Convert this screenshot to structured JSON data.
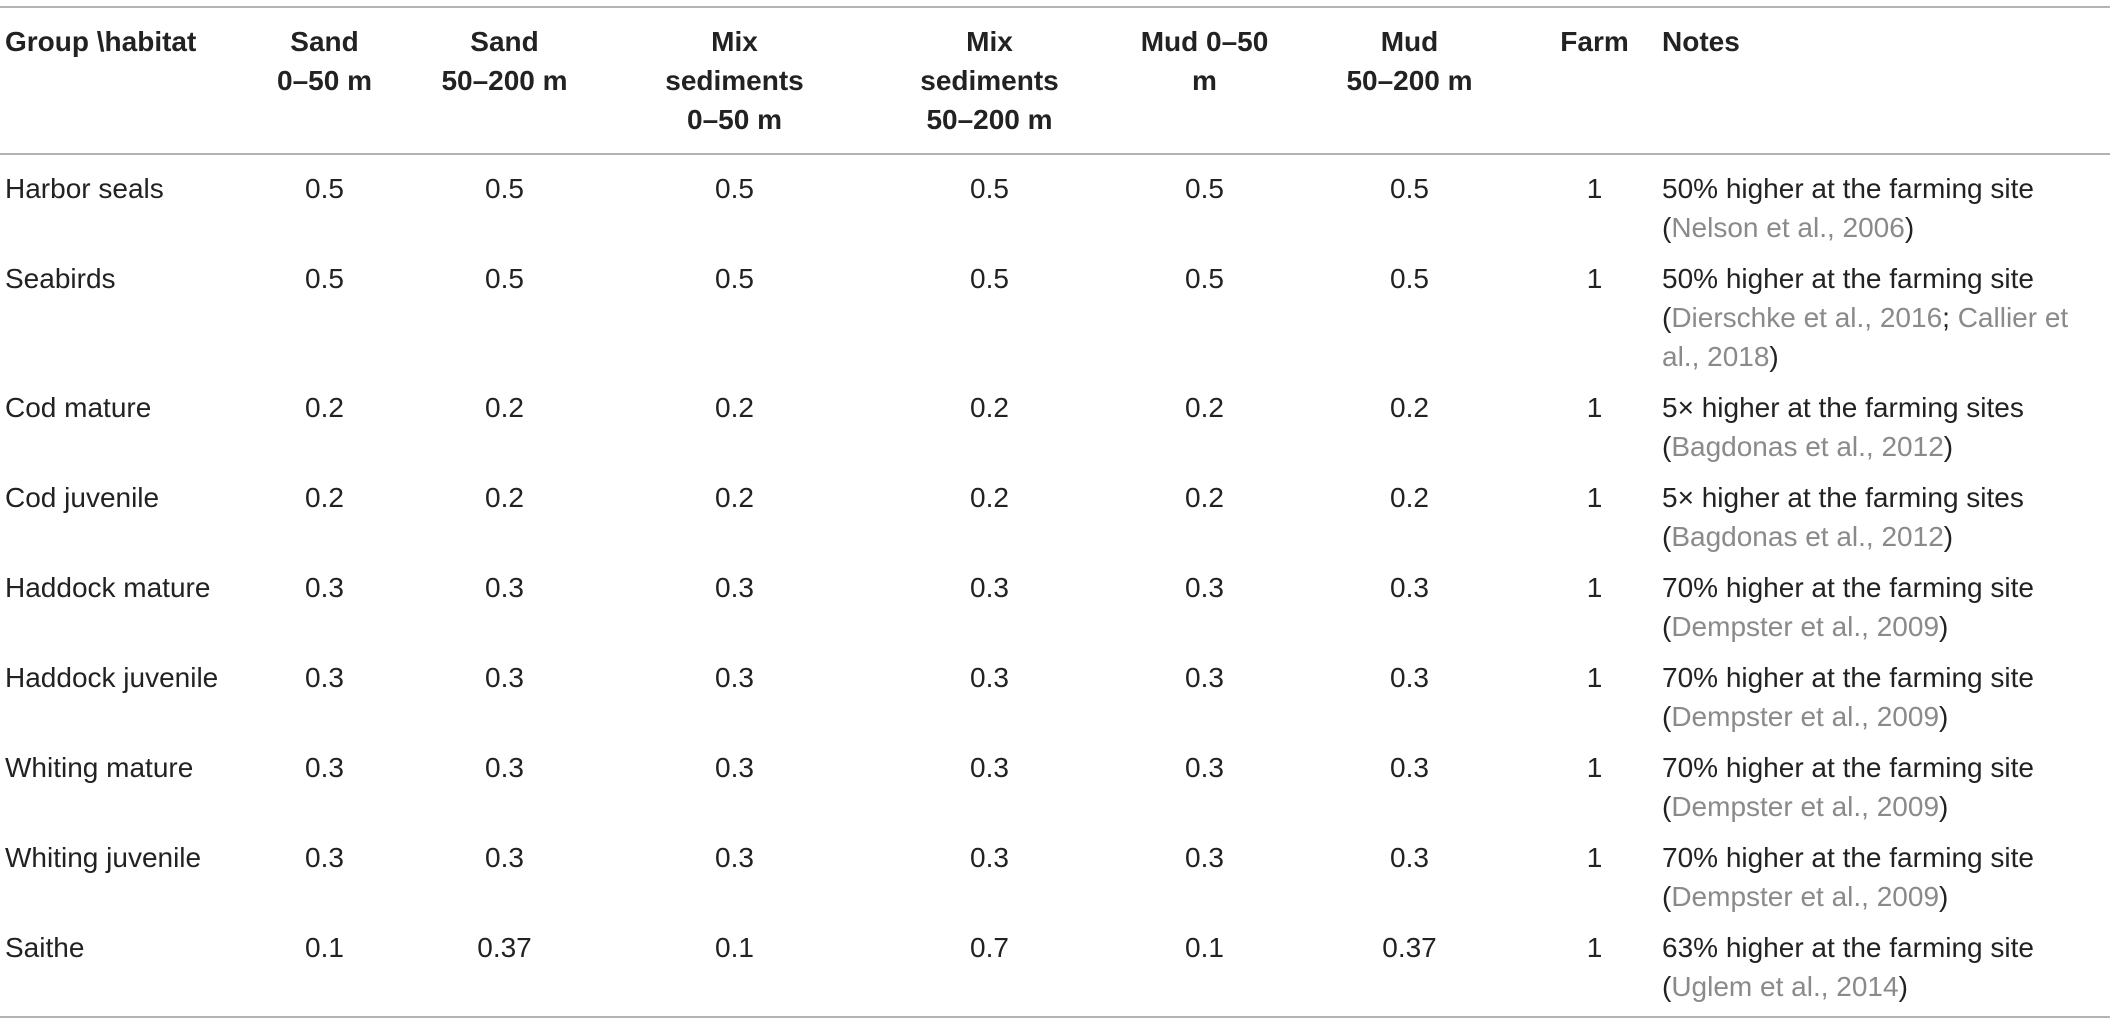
{
  "table": {
    "headers": [
      "Group \\habitat",
      "Sand\n0–50 m",
      "Sand\n50–200 m",
      "Mix\nsediments\n0–50 m",
      "Mix\nsediments\n50–200 m",
      "Mud 0–50\nm",
      "Mud\n50–200 m",
      "Farm",
      "Notes"
    ],
    "rows": [
      {
        "group": "Harbor seals",
        "values": [
          "0.5",
          "0.5",
          "0.5",
          "0.5",
          "0.5",
          "0.5",
          "1"
        ],
        "note_text": "50% higher at the farming site",
        "note_refs_pre": "(",
        "note_ref1": "Nelson et al., 2006",
        "note_ref_sep": "",
        "note_ref2": "",
        "note_refs_post": ")"
      },
      {
        "group": "Seabirds",
        "values": [
          "0.5",
          "0.5",
          "0.5",
          "0.5",
          "0.5",
          "0.5",
          "1"
        ],
        "note_text": "50% higher at the farming site",
        "note_refs_pre": "(",
        "note_ref1": "Dierschke et al., 2016",
        "note_ref_sep": "; ",
        "note_ref2": "Callier et al., 2018",
        "note_refs_post": ")"
      },
      {
        "group": "Cod mature",
        "values": [
          "0.2",
          "0.2",
          "0.2",
          "0.2",
          "0.2",
          "0.2",
          "1"
        ],
        "note_text": "5× higher at the farming sites",
        "note_refs_pre": "(",
        "note_ref1": "Bagdonas et al., 2012",
        "note_ref_sep": "",
        "note_ref2": "",
        "note_refs_post": ")"
      },
      {
        "group": "Cod juvenile",
        "values": [
          "0.2",
          "0.2",
          "0.2",
          "0.2",
          "0.2",
          "0.2",
          "1"
        ],
        "note_text": "5× higher at the farming sites",
        "note_refs_pre": "(",
        "note_ref1": "Bagdonas et al., 2012",
        "note_ref_sep": "",
        "note_ref2": "",
        "note_refs_post": ")"
      },
      {
        "group": "Haddock mature",
        "values": [
          "0.3",
          "0.3",
          "0.3",
          "0.3",
          "0.3",
          "0.3",
          "1"
        ],
        "note_text": "70% higher at the farming site",
        "note_refs_pre": "(",
        "note_ref1": "Dempster et al., 2009",
        "note_ref_sep": "",
        "note_ref2": "",
        "note_refs_post": ")"
      },
      {
        "group": "Haddock juvenile",
        "values": [
          "0.3",
          "0.3",
          "0.3",
          "0.3",
          "0.3",
          "0.3",
          "1"
        ],
        "note_text": "70% higher at the farming site",
        "note_refs_pre": "(",
        "note_ref1": "Dempster et al., 2009",
        "note_ref_sep": "",
        "note_ref2": "",
        "note_refs_post": ")"
      },
      {
        "group": "Whiting mature",
        "values": [
          "0.3",
          "0.3",
          "0.3",
          "0.3",
          "0.3",
          "0.3",
          "1"
        ],
        "note_text": "70% higher at the farming site",
        "note_refs_pre": "(",
        "note_ref1": "Dempster et al., 2009",
        "note_ref_sep": "",
        "note_ref2": "",
        "note_refs_post": ")"
      },
      {
        "group": "Whiting juvenile",
        "values": [
          "0.3",
          "0.3",
          "0.3",
          "0.3",
          "0.3",
          "0.3",
          "1"
        ],
        "note_text": "70% higher at the farming site",
        "note_refs_pre": "(",
        "note_ref1": "Dempster et al., 2009",
        "note_ref_sep": "",
        "note_ref2": "",
        "note_refs_post": ")"
      },
      {
        "group": "Saithe",
        "values": [
          "0.1",
          "0.37",
          "0.1",
          "0.7",
          "0.1",
          "0.37",
          "1"
        ],
        "note_text": "63% higher at the farming site",
        "note_refs_pre": "(",
        "note_ref1": "Uglem et al., 2014",
        "note_ref_sep": "",
        "note_ref2": "",
        "note_refs_post": ")"
      }
    ]
  },
  "colors": {
    "text": "#222222",
    "citation": "#8a8a8a",
    "rule": "#b3b3b3"
  }
}
